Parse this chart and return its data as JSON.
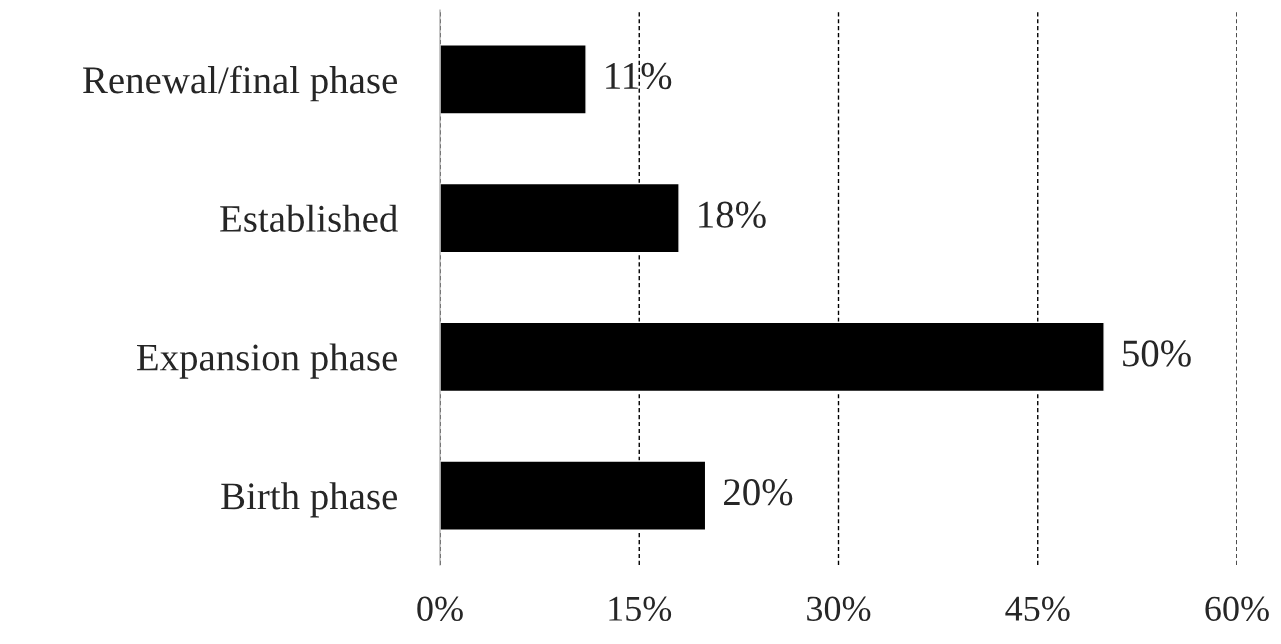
{
  "chart_data": {
    "type": "bar",
    "orientation": "horizontal",
    "categories": [
      "Renewal/final phase",
      "Established",
      "Expansion phase",
      "Birth phase"
    ],
    "values": [
      11,
      18,
      50,
      20
    ],
    "color": "#000000",
    "value_labels": [
      "11%",
      "18%",
      "50%",
      "20%"
    ],
    "xlim": [
      0,
      60
    ],
    "xticks": [
      {
        "value": 0,
        "label": "0%"
      },
      {
        "value": 15,
        "label": "15%"
      },
      {
        "value": 30,
        "label": "30%"
      },
      {
        "value": 45,
        "label": "45%"
      },
      {
        "value": 60,
        "label": "60%"
      }
    ],
    "grid": "x",
    "line_style": "dashed",
    "legend": false
  }
}
